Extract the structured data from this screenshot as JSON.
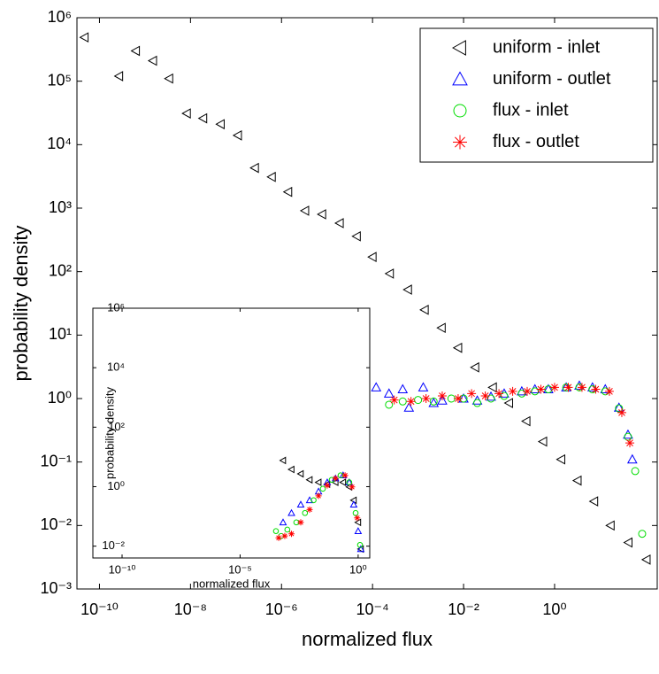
{
  "chart_data": [
    {
      "type": "scatter",
      "xscale": "log",
      "yscale": "log",
      "x_label": "normalized flux",
      "y_label": "probability density",
      "xlim": [
        3.2e-11,
        180
      ],
      "ylim": [
        0.001,
        1000000
      ],
      "xticks": [
        {
          "value": 1e-10,
          "label": "10⁻¹⁰"
        },
        {
          "value": 1e-08,
          "label": "10⁻⁸"
        },
        {
          "value": 1e-06,
          "label": "10⁻⁶"
        },
        {
          "value": 0.0001,
          "label": "10⁻⁴"
        },
        {
          "value": 0.01,
          "label": "10⁻²"
        },
        {
          "value": 1,
          "label": "10⁰"
        }
      ],
      "yticks": [
        {
          "value": 0.001,
          "label": "10⁻³"
        },
        {
          "value": 0.01,
          "label": "10⁻²"
        },
        {
          "value": 0.1,
          "label": "10⁻¹"
        },
        {
          "value": 1,
          "label": "10⁰"
        },
        {
          "value": 10,
          "label": "10¹"
        },
        {
          "value": 100,
          "label": "10²"
        },
        {
          "value": 1000,
          "label": "10³"
        },
        {
          "value": 10000,
          "label": "10⁴"
        },
        {
          "value": 100000,
          "label": "10⁵"
        },
        {
          "value": 1000000,
          "label": "10⁶"
        }
      ],
      "legend": "upper right",
      "series": [
        {
          "name": "uniform - inlet",
          "color": "#000000",
          "marker": "triangle-left",
          "x": [
            4.7e-11,
            2.7e-10,
            6.3e-10,
            1.5e-09,
            3.4e-09,
            8.3e-09,
            1.9e-08,
            4.6e-08,
            1.1e-07,
            2.6e-07,
            6.1e-07,
            1.4e-06,
            3.3e-06,
            7.8e-06,
            1.9e-05,
            4.5e-05,
            0.0001,
            0.00024,
            0.0006,
            0.0014,
            0.0033,
            0.0076,
            0.018,
            0.044,
            0.1,
            0.24,
            0.56,
            1.4,
            3.2,
            7.4,
            17,
            42,
            105
          ],
          "values": [
            490000,
            120000,
            300000,
            210000,
            110000,
            31000,
            26000,
            21000,
            14000,
            4300,
            3100,
            1800,
            910,
            800,
            580,
            360,
            170,
            93,
            52,
            25,
            13,
            6.3,
            3.1,
            1.5,
            0.85,
            0.44,
            0.21,
            0.11,
            0.051,
            0.024,
            0.01,
            0.0054,
            0.0029
          ]
        },
        {
          "name": "uniform - outlet",
          "color": "#0000ff",
          "marker": "triangle-up",
          "x": [
            0.00012,
            0.00023,
            0.00046,
            0.00063,
            0.0013,
            0.0022,
            0.0034,
            0.01,
            0.02,
            0.04,
            0.078,
            0.19,
            0.37,
            0.73,
            1.8,
            3.5,
            6.8,
            13,
            26,
            41,
            51
          ],
          "values": [
            1.5,
            1.2,
            1.4,
            0.72,
            1.5,
            0.85,
            0.93,
            1.0,
            0.93,
            1.07,
            1.2,
            1.3,
            1.4,
            1.4,
            1.5,
            1.6,
            1.5,
            1.4,
            0.72,
            0.27,
            0.11
          ]
        },
        {
          "name": "flux - inlet",
          "color": "#00dd00",
          "marker": "circle",
          "x": [
            0.00023,
            0.00046,
            0.001,
            0.0022,
            0.0054,
            0.01,
            0.02,
            0.04,
            0.078,
            0.19,
            0.37,
            0.73,
            1.8,
            3.5,
            6.8,
            13,
            26,
            41,
            59,
            84
          ],
          "values": [
            0.8,
            0.9,
            0.95,
            0.9,
            1.0,
            1.0,
            0.85,
            1.0,
            1.1,
            1.2,
            1.3,
            1.4,
            1.5,
            1.5,
            1.4,
            1.3,
            0.7,
            0.25,
            0.072,
            0.0074
          ]
        },
        {
          "name": "flux - outlet",
          "color": "#ff0000",
          "marker": "star",
          "x": [
            0.0003,
            0.0007,
            0.0015,
            0.0034,
            0.0076,
            0.015,
            0.03,
            0.06,
            0.12,
            0.25,
            0.5,
            1.0,
            2.0,
            4.0,
            8,
            16,
            30,
            45
          ],
          "values": [
            0.95,
            0.9,
            1.0,
            1.1,
            1.0,
            1.2,
            1.1,
            1.2,
            1.3,
            1.3,
            1.4,
            1.5,
            1.5,
            1.5,
            1.4,
            1.3,
            0.6,
            0.2
          ]
        }
      ]
    },
    {
      "type": "scatter",
      "xscale": "log",
      "yscale": "log",
      "x_label": "normalized flux",
      "y_label": "probability density",
      "xlim": [
        5.8e-12,
        3.1
      ],
      "ylim": [
        0.004,
        1000000
      ],
      "xticks": [
        {
          "value": 1e-10,
          "label": "10⁻¹⁰"
        },
        {
          "value": 1e-05,
          "label": "10⁻⁵"
        },
        {
          "value": 1,
          "label": "10⁰"
        }
      ],
      "yticks": [
        {
          "value": 0.01,
          "label": "10⁻²"
        },
        {
          "value": 1,
          "label": "10⁰"
        },
        {
          "value": 100,
          "label": "10²"
        },
        {
          "value": 10000,
          "label": "10⁴"
        },
        {
          "value": 1000000,
          "label": "10⁶"
        }
      ],
      "series": [
        {
          "color": "#000000",
          "marker": "triangle-left",
          "x": [
            0.00066,
            0.0015,
            0.0037,
            0.0088,
            0.021,
            0.049,
            0.11,
            0.23,
            0.42,
            0.65,
            1.0,
            1.3
          ],
          "values": [
            7.6,
            3.8,
            2.7,
            1.7,
            1.4,
            1.2,
            1.4,
            1.4,
            0.98,
            0.35,
            0.063,
            0.008
          ]
        },
        {
          "color": "#0000ff",
          "marker": "triangle-up",
          "x": [
            0.00066,
            0.0015,
            0.0037,
            0.0088,
            0.021,
            0.049,
            0.11,
            0.23,
            0.42,
            0.65,
            1.0,
            1.3
          ],
          "values": [
            0.063,
            0.13,
            0.25,
            0.35,
            0.69,
            1.4,
            1.9,
            2.4,
            1.4,
            0.25,
            0.032,
            0.008
          ]
        },
        {
          "color": "#00dd00",
          "marker": "circle",
          "x": [
            0.00033,
            0.00055,
            0.001,
            0.0024,
            0.0056,
            0.013,
            0.032,
            0.076,
            0.18,
            0.42,
            0.78,
            1.2
          ],
          "values": [
            0.032,
            0.022,
            0.036,
            0.063,
            0.13,
            0.35,
            0.85,
            1.7,
            2.4,
            1.4,
            0.13,
            0.011
          ]
        },
        {
          "color": "#ff0000",
          "marker": "star",
          "x": [
            0.00043,
            0.00078,
            0.0015,
            0.0037,
            0.0088,
            0.021,
            0.049,
            0.11,
            0.28,
            0.55,
            0.91
          ],
          "values": [
            0.019,
            0.022,
            0.026,
            0.063,
            0.17,
            0.49,
            1.1,
            1.9,
            2.4,
            0.98,
            0.089
          ]
        }
      ]
    }
  ]
}
